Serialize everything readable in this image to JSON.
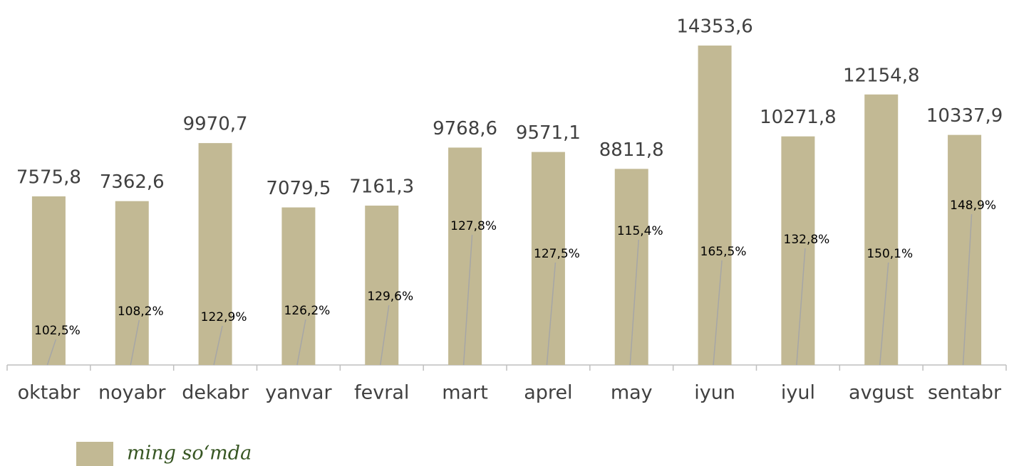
{
  "chart_data": {
    "type": "bar",
    "categories": [
      "oktabr",
      "noyabr",
      "dekabr",
      "yanvar",
      "fevral",
      "mart",
      "aprel",
      "may",
      "iyun",
      "iyul",
      "avgust",
      "sentabr"
    ],
    "series": [
      {
        "name": "ming so‘mda",
        "color": "#c2b994",
        "values": [
          7575.8,
          7362.6,
          9970.7,
          7079.5,
          7161.3,
          9768.6,
          9571.1,
          8811.8,
          14353.6,
          10271.8,
          12154.8,
          10337.9
        ],
        "value_labels": [
          "7575,8",
          "7362,6",
          "9970,7",
          "7079,5",
          "7161,3",
          "9768,6",
          "9571,1",
          "8811,8",
          "14353,6",
          "10271,8",
          "12154,8",
          "10337,9"
        ]
      }
    ],
    "percent_values": [
      102.5,
      108.2,
      122.9,
      126.2,
      129.6,
      127.8,
      127.5,
      115.4,
      165.5,
      132.8,
      150.1,
      148.9
    ],
    "percent_labels": [
      "102,5%",
      "108,2%",
      "122,9%",
      "126,2%",
      "129,6%",
      "127,8%",
      "127,5%",
      "115,4%",
      "165,5%",
      "132,8%",
      "150,1%",
      "148,9%"
    ],
    "ylim": [
      0,
      16400
    ],
    "legend": "bottom-left"
  }
}
